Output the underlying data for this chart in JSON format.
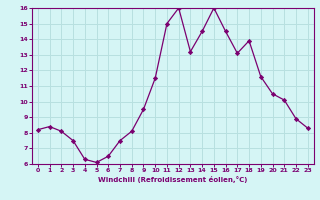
{
  "x": [
    0,
    1,
    2,
    3,
    4,
    5,
    6,
    7,
    8,
    9,
    10,
    11,
    12,
    13,
    14,
    15,
    16,
    17,
    18,
    19,
    20,
    21,
    22,
    23
  ],
  "y": [
    8.2,
    8.4,
    8.1,
    7.5,
    6.3,
    6.1,
    6.5,
    7.5,
    8.1,
    9.5,
    11.5,
    15.0,
    16.0,
    13.2,
    14.5,
    16.0,
    14.5,
    13.1,
    13.9,
    11.6,
    10.5,
    10.1,
    8.9,
    8.3
  ],
  "line_color": "#7B0070",
  "marker": "D",
  "marker_size": 2.2,
  "bg_color": "#d5f5f5",
  "grid_color": "#b8e0e0",
  "xlabel": "Windchill (Refroidissement éolien,°C)",
  "xlabel_color": "#7B0070",
  "tick_color": "#7B0070",
  "spine_color": "#7B0070",
  "ylim": [
    6,
    16
  ],
  "xlim": [
    -0.5,
    23.5
  ],
  "yticks": [
    6,
    7,
    8,
    9,
    10,
    11,
    12,
    13,
    14,
    15,
    16
  ],
  "xticks": [
    0,
    1,
    2,
    3,
    4,
    5,
    6,
    7,
    8,
    9,
    10,
    11,
    12,
    13,
    14,
    15,
    16,
    17,
    18,
    19,
    20,
    21,
    22,
    23
  ]
}
